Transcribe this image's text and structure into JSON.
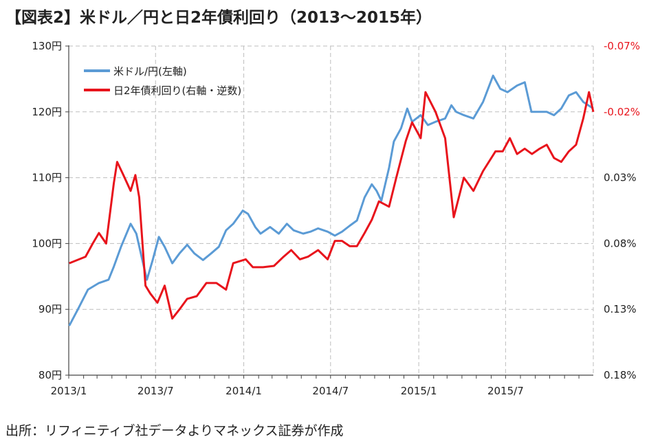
{
  "title": "【図表2】米ドル／円と日2年債利回り（2013〜2015年）",
  "source": "出所：リフィニティブ社データよりマネックス証券が作成",
  "chart_data": {
    "type": "line",
    "x_ticks": [
      "2013/1",
      "2013/7",
      "2014/1",
      "2014/7",
      "2015/1",
      "2015/7"
    ],
    "left_axis": {
      "ticks": [
        "80円",
        "90円",
        "100円",
        "110円",
        "120円",
        "130円"
      ],
      "min": 80,
      "max": 130
    },
    "right_axis": {
      "ticks": [
        "-0.07%",
        "-0.02%",
        "0.03%",
        "0.08%",
        "0.13%",
        "0.18%"
      ],
      "min": -0.07,
      "max": 0.18,
      "inverted": true
    },
    "grid": true,
    "legend_position": "top-left",
    "colors": {
      "usdjpy": "#5b9bd5",
      "jgb2y": "#e8141c",
      "right_axis_label": "#e8141c"
    },
    "series": [
      {
        "name": "米ドル/円(左軸)",
        "axis": "left",
        "x": [
          "2013-01-02",
          "2013-01-20",
          "2013-02-10",
          "2013-03-05",
          "2013-03-25",
          "2013-04-05",
          "2013-04-20",
          "2013-05-10",
          "2013-05-22",
          "2013-06-05",
          "2013-06-13",
          "2013-06-25",
          "2013-07-08",
          "2013-07-20",
          "2013-08-05",
          "2013-08-20",
          "2013-09-05",
          "2013-09-20",
          "2013-10-08",
          "2013-10-25",
          "2013-11-10",
          "2013-11-25",
          "2013-12-10",
          "2013-12-30",
          "2014-01-10",
          "2014-01-25",
          "2014-02-05",
          "2014-02-25",
          "2014-03-15",
          "2014-04-01",
          "2014-04-15",
          "2014-05-05",
          "2014-05-20",
          "2014-06-05",
          "2014-06-25",
          "2014-07-10",
          "2014-07-25",
          "2014-08-10",
          "2014-08-25",
          "2014-09-10",
          "2014-09-25",
          "2014-10-05",
          "2014-10-15",
          "2014-10-31",
          "2014-11-10",
          "2014-11-25",
          "2014-12-08",
          "2014-12-18",
          "2015-01-05",
          "2015-01-20",
          "2015-02-05",
          "2015-02-25",
          "2015-03-10",
          "2015-03-20",
          "2015-04-05",
          "2015-04-25",
          "2015-05-15",
          "2015-06-05",
          "2015-06-20",
          "2015-07-05",
          "2015-07-25",
          "2015-08-10",
          "2015-08-24",
          "2015-09-05",
          "2015-09-25",
          "2015-10-10",
          "2015-10-25",
          "2015-11-10",
          "2015-11-25",
          "2015-12-10",
          "2015-12-31"
        ],
        "values": [
          87.5,
          90.0,
          93.0,
          94.0,
          94.5,
          96.5,
          99.5,
          103.0,
          101.5,
          97.0,
          94.5,
          97.5,
          101.0,
          99.5,
          97.0,
          98.5,
          99.8,
          98.5,
          97.5,
          98.5,
          99.5,
          102.0,
          103.0,
          105.0,
          104.5,
          102.5,
          101.5,
          102.5,
          101.5,
          103.0,
          102.0,
          101.5,
          101.8,
          102.3,
          101.8,
          101.2,
          101.8,
          102.7,
          103.5,
          107.0,
          109.0,
          108.0,
          106.5,
          111.5,
          115.5,
          117.5,
          120.5,
          118.5,
          119.5,
          118.0,
          118.5,
          119.0,
          121.0,
          120.0,
          119.5,
          119.0,
          121.5,
          125.5,
          123.5,
          123.0,
          124.0,
          124.5,
          120.0,
          120.0,
          120.0,
          119.5,
          120.5,
          122.5,
          123.0,
          121.5,
          120.5
        ]
      },
      {
        "name": "日2年債利回り(右軸・逆数)",
        "axis": "right",
        "x": [
          "2013-01-02",
          "2013-02-05",
          "2013-02-20",
          "2013-03-05",
          "2013-03-20",
          "2013-04-05",
          "2013-04-12",
          "2013-04-25",
          "2013-05-10",
          "2013-05-20",
          "2013-05-28",
          "2013-06-10",
          "2013-06-20",
          "2013-07-05",
          "2013-07-20",
          "2013-08-05",
          "2013-08-20",
          "2013-09-05",
          "2013-09-25",
          "2013-10-15",
          "2013-11-05",
          "2013-11-25",
          "2013-12-10",
          "2014-01-05",
          "2014-01-20",
          "2014-02-10",
          "2014-03-05",
          "2014-03-25",
          "2014-04-10",
          "2014-04-28",
          "2014-05-15",
          "2014-06-05",
          "2014-06-25",
          "2014-07-10",
          "2014-07-25",
          "2014-08-10",
          "2014-08-25",
          "2014-09-10",
          "2014-09-25",
          "2014-10-10",
          "2014-10-31",
          "2014-11-15",
          "2014-12-05",
          "2014-12-18",
          "2015-01-05",
          "2015-01-15",
          "2015-02-05",
          "2015-02-25",
          "2015-03-15",
          "2015-04-05",
          "2015-04-25",
          "2015-05-15",
          "2015-06-10",
          "2015-06-25",
          "2015-07-10",
          "2015-07-25",
          "2015-08-10",
          "2015-08-25",
          "2015-09-10",
          "2015-09-25",
          "2015-10-10",
          "2015-10-25",
          "2015-11-10",
          "2015-11-25",
          "2015-12-10",
          "2015-12-22",
          "2015-12-31"
        ],
        "values": [
          0.095,
          0.09,
          0.08,
          0.072,
          0.08,
          0.034,
          0.018,
          0.028,
          0.04,
          0.028,
          0.045,
          0.112,
          0.118,
          0.125,
          0.112,
          0.137,
          0.13,
          0.122,
          0.12,
          0.11,
          0.11,
          0.115,
          0.095,
          0.092,
          0.098,
          0.098,
          0.097,
          0.09,
          0.085,
          0.092,
          0.09,
          0.085,
          0.092,
          0.078,
          0.078,
          0.082,
          0.082,
          0.072,
          0.062,
          0.048,
          0.052,
          0.03,
          0.002,
          -0.012,
          0.0,
          -0.035,
          -0.02,
          0.0,
          0.06,
          0.03,
          0.04,
          0.025,
          0.01,
          0.01,
          0.0,
          0.012,
          0.008,
          0.012,
          0.008,
          0.005,
          0.015,
          0.018,
          0.01,
          0.005,
          -0.015,
          -0.035,
          -0.02
        ]
      }
    ]
  }
}
